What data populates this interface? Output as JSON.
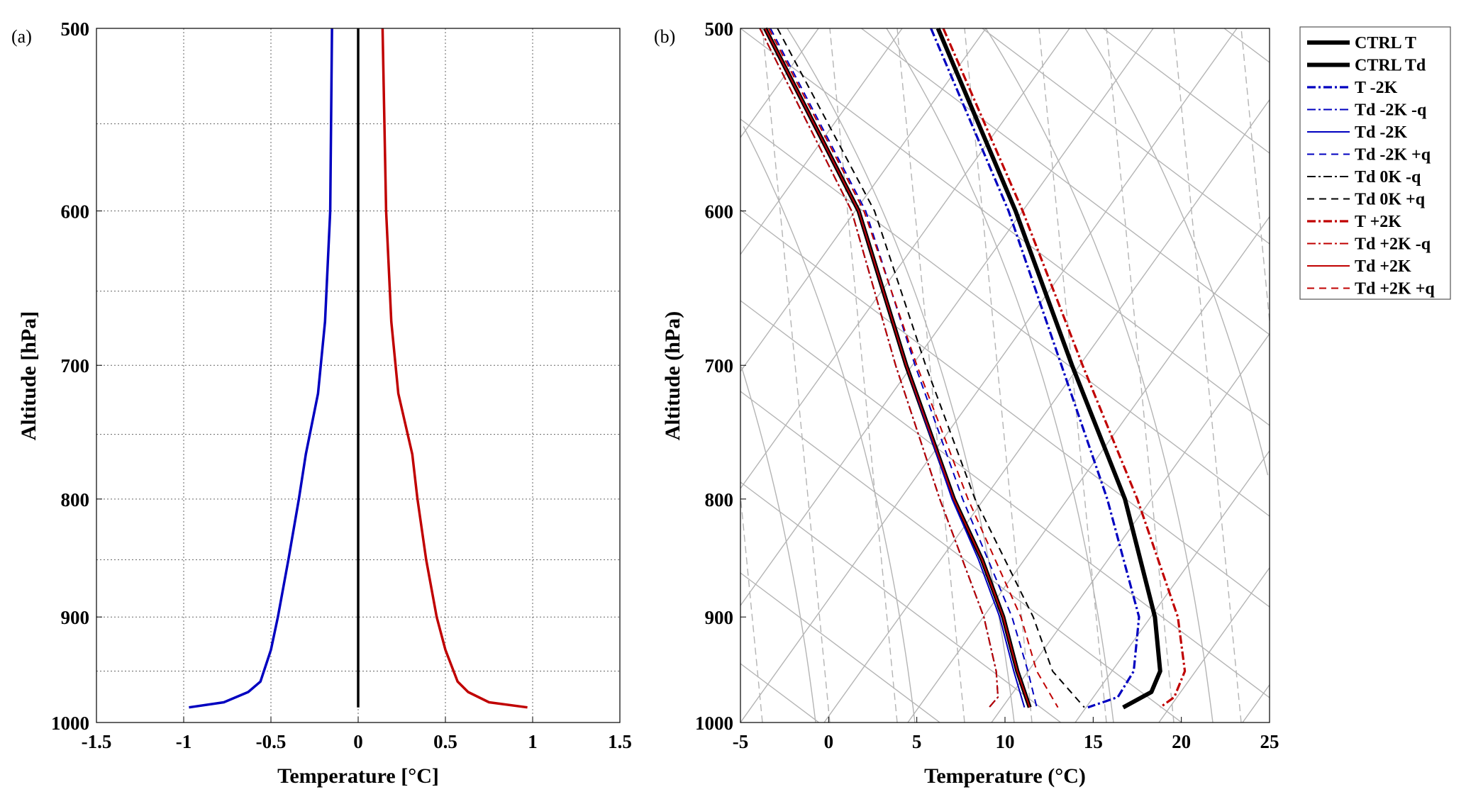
{
  "chart_data": [
    {
      "type": "line",
      "panel_label": "(a)",
      "xlabel": "Temperature [°C]",
      "ylabel": "Altitude [hPa]",
      "xlim": [
        -1.5,
        1.5
      ],
      "ylim": [
        1000,
        500
      ],
      "yscale": "log",
      "y_reversed": true,
      "grid": true,
      "xticks": [
        "-1.5",
        "-1",
        "-0.5",
        "0",
        "0.5",
        "1",
        "1.5"
      ],
      "yticks": [
        "500",
        "600",
        "700",
        "800",
        "900",
        "1000"
      ],
      "series": [
        {
          "color": "#0000c0",
          "style": "solid",
          "p": [
            500,
            600,
            670,
            720,
            765,
            800,
            850,
            900,
            930,
            960,
            970,
            980,
            985
          ],
          "t": [
            -0.15,
            -0.16,
            -0.19,
            -0.23,
            -0.3,
            -0.34,
            -0.4,
            -0.46,
            -0.5,
            -0.56,
            -0.63,
            -0.77,
            -0.97
          ]
        },
        {
          "color": "#000000",
          "style": "solid",
          "p": [
            500,
            985
          ],
          "t": [
            0,
            0
          ]
        },
        {
          "color": "#c00000",
          "style": "solid",
          "p": [
            500,
            600,
            670,
            720,
            765,
            800,
            850,
            900,
            930,
            960,
            970,
            980,
            985
          ],
          "t": [
            0.14,
            0.16,
            0.19,
            0.23,
            0.31,
            0.34,
            0.39,
            0.45,
            0.5,
            0.57,
            0.63,
            0.75,
            0.97
          ]
        }
      ]
    },
    {
      "type": "line",
      "panel_label": "(b)",
      "xlabel": "Temperature (°C)",
      "ylabel": "Altitude (hPa)",
      "xlim": [
        -5,
        25
      ],
      "ylim": [
        1000,
        500
      ],
      "yscale": "log",
      "y_reversed": true,
      "background": "skew-T log-p diagram lines",
      "xticks": [
        "-5",
        "0",
        "5",
        "10",
        "15",
        "20",
        "25"
      ],
      "yticks": [
        "500",
        "600",
        "700",
        "800",
        "900",
        "1000"
      ],
      "legend_position": "outside-right-top",
      "series": [
        {
          "name": "CTRL T",
          "color": "#000000",
          "style": "solid",
          "weight": "thick",
          "p": [
            500,
            600,
            700,
            800,
            900,
            950,
            970,
            985
          ],
          "t": [
            6.2,
            10.6,
            13.8,
            16.8,
            18.5,
            18.8,
            18.3,
            16.7
          ]
        },
        {
          "name": "CTRL Td",
          "color": "#000000",
          "style": "solid",
          "weight": "thick",
          "p": [
            500,
            600,
            700,
            800,
            850,
            900,
            950,
            985
          ],
          "t": [
            -3.6,
            1.7,
            4.4,
            7.1,
            8.7,
            9.9,
            10.7,
            11.4
          ]
        },
        {
          "name": "T -2K",
          "color": "#0000c0",
          "style": "dashdot",
          "weight": "medium",
          "p": [
            500,
            600,
            700,
            800,
            900,
            950,
            975,
            985
          ],
          "t": [
            5.8,
            10.2,
            13.2,
            15.8,
            17.6,
            17.3,
            16.4,
            14.7
          ]
        },
        {
          "name": "Td -2K -q",
          "color": "#0000c0",
          "style": "dashdot",
          "weight": "thin",
          "p": [
            500,
            600,
            700,
            800,
            900,
            950,
            975,
            985
          ],
          "t": [
            -3.9,
            1.3,
            3.8,
            6.3,
            8.8,
            9.5,
            9.6,
            9.1
          ]
        },
        {
          "name": "Td -2K",
          "color": "#0000c0",
          "style": "solid",
          "weight": "thin",
          "p": [
            500,
            600,
            700,
            800,
            850,
            900,
            950,
            985
          ],
          "t": [
            -3.6,
            1.7,
            4.4,
            7.0,
            8.5,
            9.7,
            10.5,
            11.1
          ]
        },
        {
          "name": "Td -2K +q",
          "color": "#0000c0",
          "style": "dashed",
          "weight": "thin",
          "p": [
            500,
            600,
            700,
            800,
            900,
            950,
            985
          ],
          "t": [
            -3.3,
            2.1,
            4.9,
            7.6,
            10.4,
            11.3,
            11.8
          ]
        },
        {
          "name": "Td 0K -q",
          "color": "#000000",
          "style": "dashdot",
          "weight": "thin",
          "p": [
            500,
            600,
            700,
            800,
            900,
            950,
            975,
            985
          ],
          "t": [
            -3.9,
            1.3,
            3.8,
            6.3,
            8.8,
            9.5,
            9.6,
            9.1
          ]
        },
        {
          "name": "Td 0K +q",
          "color": "#000000",
          "style": "dashed",
          "weight": "thin",
          "p": [
            500,
            600,
            700,
            800,
            900,
            950,
            985
          ],
          "t": [
            -2.9,
            2.6,
            5.5,
            8.3,
            11.6,
            12.7,
            14.5
          ]
        },
        {
          "name": "T +2K",
          "color": "#c00000",
          "style": "dashdot",
          "weight": "medium",
          "p": [
            500,
            600,
            700,
            800,
            900,
            950,
            975,
            985
          ],
          "t": [
            6.5,
            11.0,
            14.4,
            17.5,
            19.8,
            20.2,
            19.6,
            18.8
          ]
        },
        {
          "name": "Td +2K -q",
          "color": "#c00000",
          "style": "dashdot",
          "weight": "thin",
          "p": [
            500,
            600,
            700,
            800,
            900,
            950,
            975,
            985
          ],
          "t": [
            -3.9,
            1.3,
            3.8,
            6.3,
            8.8,
            9.5,
            9.6,
            9.1
          ]
        },
        {
          "name": "Td +2K",
          "color": "#c00000",
          "style": "solid",
          "weight": "thin",
          "p": [
            500,
            600,
            700,
            800,
            850,
            900,
            950,
            985
          ],
          "t": [
            -3.6,
            1.7,
            4.4,
            7.1,
            8.7,
            9.9,
            10.7,
            11.4
          ]
        },
        {
          "name": "Td +2K +q",
          "color": "#c00000",
          "style": "dashed",
          "weight": "thin",
          "p": [
            500,
            600,
            700,
            800,
            900,
            950,
            985
          ],
          "t": [
            -3.4,
            2.0,
            5.0,
            7.9,
            10.9,
            11.8,
            13.0
          ]
        }
      ]
    }
  ]
}
